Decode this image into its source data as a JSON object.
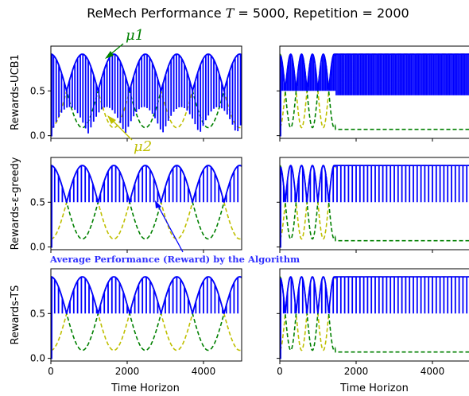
{
  "figure": {
    "title": "ReMech Performance T = 5000, Repetition = 2000",
    "title_prefix": "ReMech Performance ",
    "title_T": "T",
    "title_suffix": " = 5000, Repetition = 2000",
    "row_labels": [
      "Rewards-UCB1",
      "Rewards-ε-greedy",
      "Rewards-TS"
    ],
    "xlabel": "Time Horizon",
    "annotations": {
      "mu1": "μ1",
      "mu2": "μ2",
      "avg": "Average Performance (Reward) by the Algorithm"
    }
  },
  "chart_data": {
    "type": "line",
    "layout": "3x2 grid of subplots",
    "xlabel": "Time Horizon",
    "xticks": [
      0,
      2000,
      4000
    ],
    "yticks": [
      0.0,
      0.5
    ],
    "xlim": [
      0,
      5000
    ],
    "ylim": [
      -0.03,
      1.0
    ],
    "colors": {
      "mu1": "#008000",
      "mu2": "#bfbf00",
      "reward": "#0000ff"
    },
    "series_styles": {
      "mu1": "dashed",
      "mu2": "dashed",
      "reward": "solid"
    },
    "panels": [
      {
        "row": 0,
        "col": 0,
        "ylabel": "Rewards-UCB1",
        "environment": "sinusoidal",
        "algorithm": "UCB1",
        "mu1": {
          "mean": 0.5,
          "amplitude": 0.41,
          "period": 1650
        },
        "mu2": {
          "mean": 0.5,
          "amplitude": -0.41,
          "period": 1650
        },
        "reward_low": 0.0,
        "spike_interval": 70
      },
      {
        "row": 0,
        "col": 1,
        "environment": "abrupt",
        "algorithm": "UCB1",
        "mu1": {
          "mean": 0.5,
          "amplitude": 0.41,
          "period": 570,
          "until": 1450,
          "after": 0.07
        },
        "mu2": {
          "mean": 0.5,
          "amplitude": -0.41,
          "period": 570,
          "until": 1450,
          "after": 0.91
        },
        "reward_low": 0.45,
        "spike_interval": 40
      },
      {
        "row": 1,
        "col": 0,
        "ylabel": "Rewards-ε-greedy",
        "environment": "sinusoidal",
        "algorithm": "ε-greedy",
        "mu1": {
          "mean": 0.5,
          "amplitude": 0.41,
          "period": 1650
        },
        "mu2": {
          "mean": 0.5,
          "amplitude": -0.41,
          "period": 1650
        },
        "reward_low": 0.5,
        "spike_interval": 100
      },
      {
        "row": 1,
        "col": 1,
        "environment": "abrupt",
        "algorithm": "ε-greedy",
        "mu1": {
          "mean": 0.5,
          "amplitude": 0.41,
          "period": 570,
          "until": 1450,
          "after": 0.07
        },
        "mu2": {
          "mean": 0.5,
          "amplitude": -0.41,
          "period": 570,
          "until": 1450,
          "after": 0.91
        },
        "reward_low": 0.5,
        "spike_interval": 100
      },
      {
        "row": 2,
        "col": 0,
        "ylabel": "Rewards-TS",
        "environment": "sinusoidal",
        "algorithm": "TS",
        "mu1": {
          "mean": 0.5,
          "amplitude": 0.41,
          "period": 1650
        },
        "mu2": {
          "mean": 0.5,
          "amplitude": -0.41,
          "period": 1650
        },
        "reward_low": 0.5,
        "spike_interval": 100
      },
      {
        "row": 2,
        "col": 1,
        "environment": "abrupt",
        "algorithm": "TS",
        "mu1": {
          "mean": 0.5,
          "amplitude": 0.41,
          "period": 570,
          "until": 1450,
          "after": 0.07
        },
        "mu2": {
          "mean": 0.5,
          "amplitude": -0.41,
          "period": 570,
          "until": 1450,
          "after": 0.91
        },
        "reward_low": 0.5,
        "spike_interval": 100
      }
    ]
  }
}
